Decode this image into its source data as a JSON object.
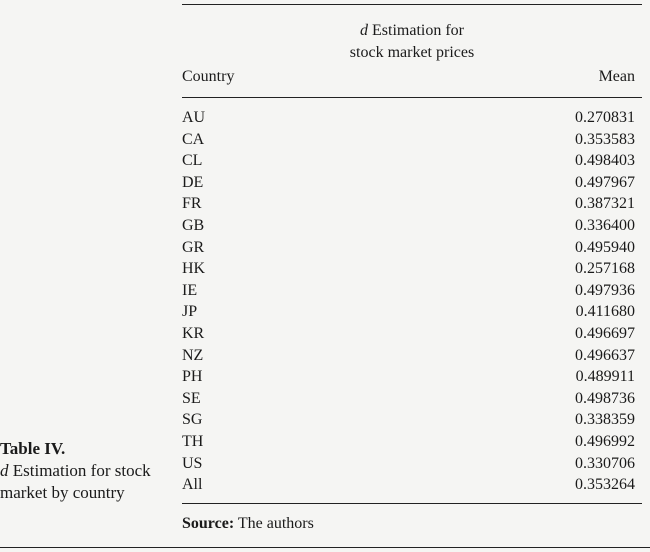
{
  "caption": {
    "number": "Table IV.",
    "italic_d": "d",
    "text": " Estimation for stock market by country"
  },
  "header": {
    "group_italic": "d",
    "group_rest": " Estimation for",
    "group_line2": "stock market prices",
    "col_country": "Country",
    "col_mean": "Mean"
  },
  "rows": [
    {
      "country": "AU",
      "mean": "0.270831"
    },
    {
      "country": "CA",
      "mean": "0.353583"
    },
    {
      "country": "CL",
      "mean": "0.498403"
    },
    {
      "country": "DE",
      "mean": "0.497967"
    },
    {
      "country": "FR",
      "mean": "0.387321"
    },
    {
      "country": "GB",
      "mean": "0.336400"
    },
    {
      "country": "GR",
      "mean": "0.495940"
    },
    {
      "country": "HK",
      "mean": "0.257168"
    },
    {
      "country": "IE",
      "mean": "0.497936"
    },
    {
      "country": "JP",
      "mean": "0.411680"
    },
    {
      "country": "KR",
      "mean": "0.496697"
    },
    {
      "country": "NZ",
      "mean": "0.496637"
    },
    {
      "country": "PH",
      "mean": "0.489911"
    },
    {
      "country": "SE",
      "mean": "0.498736"
    },
    {
      "country": "SG",
      "mean": "0.338359"
    },
    {
      "country": "TH",
      "mean": "0.496992"
    },
    {
      "country": "US",
      "mean": "0.330706"
    },
    {
      "country": "All",
      "mean": "0.353264"
    }
  ],
  "source": {
    "label": "Source:",
    "text": " The authors"
  }
}
